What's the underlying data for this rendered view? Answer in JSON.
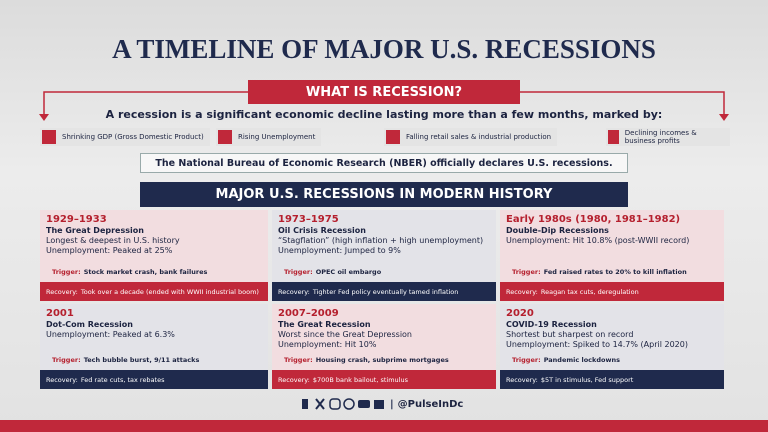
{
  "header": {
    "title": "A TIMELINE OF MAJOR U.S. RECESSIONS"
  },
  "definition": {
    "heading": "WHAT IS RECESSION?",
    "text": "A recession is a significant economic decline lasting more than a few months, marked by:",
    "markers": [
      "Shrinking GDP (Gross Domestic Product)",
      "Rising Unemployment",
      "Falling retail sales & industrial production",
      "Declining incomes & business profits"
    ],
    "note": "The National Bureau of Economic Research (NBER) officially declares U.S. recessions."
  },
  "history": {
    "heading": "MAJOR U.S. RECESSIONS IN MODERN HISTORY",
    "cards": [
      {
        "period": "1929–1933",
        "name": "The Great Depression",
        "lines": [
          "Longest & deepest in U.S. history",
          "Unemployment: Peaked at 25%"
        ],
        "trigger": {
          "label": "Trigger:",
          "text": "Stock market crash, bank failures"
        },
        "recovery": {
          "label": "Recovery:",
          "text": "Took over a decade (ended with WWII industrial boom)"
        }
      },
      {
        "period": "1973–1975",
        "name": "Oil Crisis Recession",
        "lines": [
          "“Stagflation” (high inflation + high unemployment)",
          "Unemployment: Jumped to 9%"
        ],
        "trigger": {
          "label": "Trigger:",
          "text": "OPEC oil embargo"
        },
        "recovery": {
          "label": "Recovery:",
          "text": "Tighter Fed policy eventually tamed inflation"
        }
      },
      {
        "period": "Early 1980s (1980, 1981–1982)",
        "name": "Double-Dip Recessions",
        "lines": [
          "Unemployment: Hit 10.8% (post-WWII record)"
        ],
        "trigger": {
          "label": "Trigger:",
          "text": "Fed raised rates to 20% to kill inflation"
        },
        "recovery": {
          "label": "Recovery:",
          "text": "Reagan tax cuts, deregulation"
        }
      },
      {
        "period": "2001",
        "name": "Dot-Com Recession",
        "lines": [
          "Unemployment: Peaked at 6.3%"
        ],
        "trigger": {
          "label": "Trigger:",
          "text": "Tech bubble burst, 9/11 attacks"
        },
        "recovery": {
          "label": "Recovery:",
          "text": "Fed rate cuts, tax rebates"
        }
      },
      {
        "period": "2007–2009",
        "name": "The Great Recession",
        "lines": [
          "Worst since the Great Depression",
          "Unemployment: Hit 10%"
        ],
        "trigger": {
          "label": "Trigger:",
          "text": "Housing crash, subprime mortgages"
        },
        "recovery": {
          "label": "Recovery:",
          "text": "$700B bank bailout, stimulus"
        }
      },
      {
        "period": "2020",
        "name": "COVID-19 Recession",
        "lines": [
          "Shortest but sharpest on record",
          "Unemployment: Spiked to 14.7% (April 2020)"
        ],
        "trigger": {
          "label": "Trigger:",
          "text": "Pandemic lockdowns"
        },
        "recovery": {
          "label": "Recovery:",
          "text": "$5T in stimulus, Fed support"
        }
      }
    ]
  },
  "footer": {
    "handle": "@PulseInDc"
  }
}
